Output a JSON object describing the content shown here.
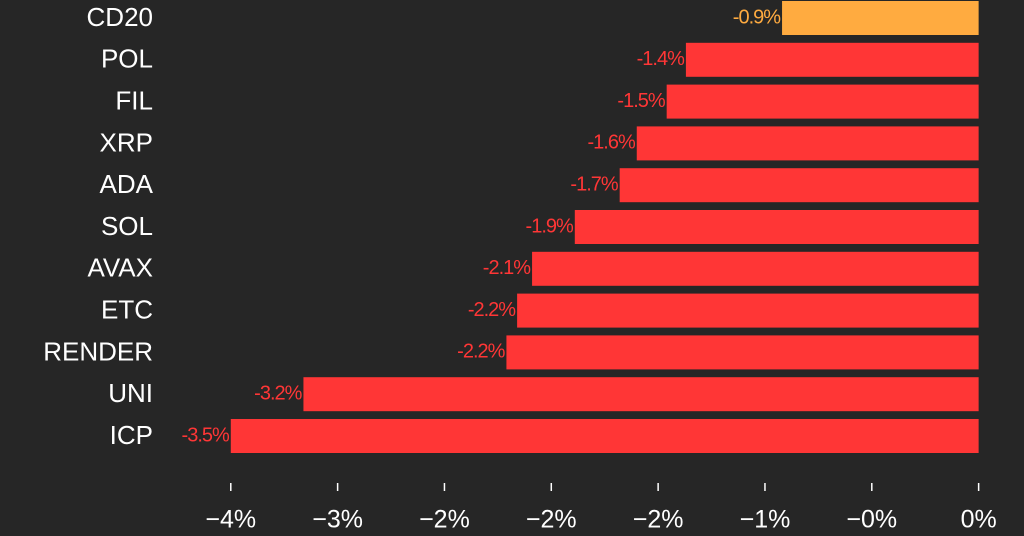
{
  "chart_data": {
    "type": "hbar",
    "categories": [
      "CD20",
      "POL",
      "FIL",
      "XRP",
      "ADA",
      "SOL",
      "AVAX",
      "ETC",
      "RENDER",
      "UNI",
      "ICP"
    ],
    "values": [
      -0.92,
      -1.37,
      -1.46,
      -1.6,
      -1.68,
      -1.89,
      -2.09,
      -2.16,
      -2.21,
      -3.16,
      -3.5
    ],
    "value_labels": [
      "-0.9%",
      "-1.4%",
      "-1.5%",
      "-1.6%",
      "-1.7%",
      "-1.9%",
      "-2.1%",
      "-2.2%",
      "-2.2%",
      "-3.2%",
      "-3.5%"
    ],
    "colors": [
      "#ffab40",
      "#ff3636",
      "#ff3636",
      "#ff3636",
      "#ff3636",
      "#ff3636",
      "#ff3636",
      "#ff3636",
      "#ff3636",
      "#ff3636",
      "#ff3636"
    ],
    "xlim": [
      -3.85,
      0.1
    ],
    "xticks": [
      {
        "value": -3.5,
        "label": "−4%"
      },
      {
        "value": -3,
        "label": "−3%"
      },
      {
        "value": -2.5,
        "label": "−2%"
      },
      {
        "value": -2,
        "label": "−2%"
      },
      {
        "value": -1.5,
        "label": "−2%"
      },
      {
        "value": -1,
        "label": "−1%"
      },
      {
        "value": -0.5,
        "label": "−0%"
      },
      {
        "value": 0,
        "label": "0%"
      }
    ]
  }
}
